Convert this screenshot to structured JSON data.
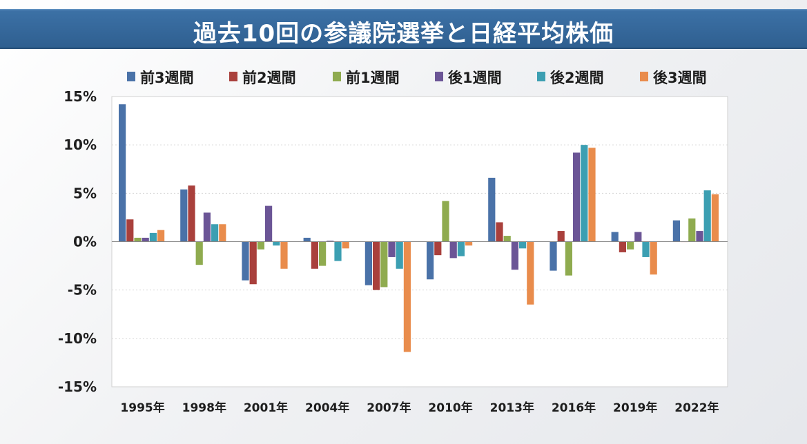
{
  "title": "過去10回の参議院選挙と日経平均株価",
  "chart_data": {
    "type": "bar",
    "title": "過去10回の参議院選挙と日経平均株価",
    "xlabel": "",
    "ylabel": "",
    "ylim": [
      -15,
      15
    ],
    "yticks": [
      15,
      10,
      5,
      0,
      -5,
      -10,
      -15
    ],
    "ytick_labels": [
      "15%",
      "10%",
      "5%",
      "0%",
      "-5%",
      "-10%",
      "-15%"
    ],
    "grid": true,
    "legend_position": "top",
    "categories": [
      "1995年",
      "1998年",
      "2001年",
      "2004年",
      "2007年",
      "2010年",
      "2013年",
      "2016年",
      "2019年",
      "2022年"
    ],
    "series": [
      {
        "name": "前3週間",
        "color": "#4a72a8",
        "values": [
          14.2,
          5.4,
          -4.0,
          0.4,
          -4.5,
          -3.9,
          6.6,
          -3.0,
          1.0,
          2.2
        ]
      },
      {
        "name": "前2週間",
        "color": "#a9403c",
        "values": [
          2.3,
          5.8,
          -4.4,
          -2.8,
          -5.0,
          -1.4,
          2.0,
          1.1,
          -1.1,
          0.0
        ]
      },
      {
        "name": "前1週間",
        "color": "#8fab4f",
        "values": [
          0.4,
          -2.4,
          -0.8,
          -2.5,
          -4.7,
          4.2,
          0.6,
          -3.5,
          -0.8,
          2.4
        ]
      },
      {
        "name": "後1週間",
        "color": "#6b5596",
        "values": [
          0.4,
          3.0,
          3.7,
          0.1,
          -1.6,
          -1.7,
          -2.9,
          9.2,
          1.0,
          1.1
        ]
      },
      {
        "name": "後2週間",
        "color": "#3c9fb2",
        "values": [
          0.9,
          1.8,
          -0.4,
          -2.0,
          -2.8,
          -1.5,
          -0.7,
          10.0,
          -1.6,
          5.3
        ]
      },
      {
        "name": "後3週間",
        "color": "#e98c4c",
        "values": [
          1.2,
          1.8,
          -2.8,
          -0.7,
          -11.4,
          -0.4,
          -6.5,
          9.7,
          -3.4,
          4.9
        ]
      }
    ]
  }
}
